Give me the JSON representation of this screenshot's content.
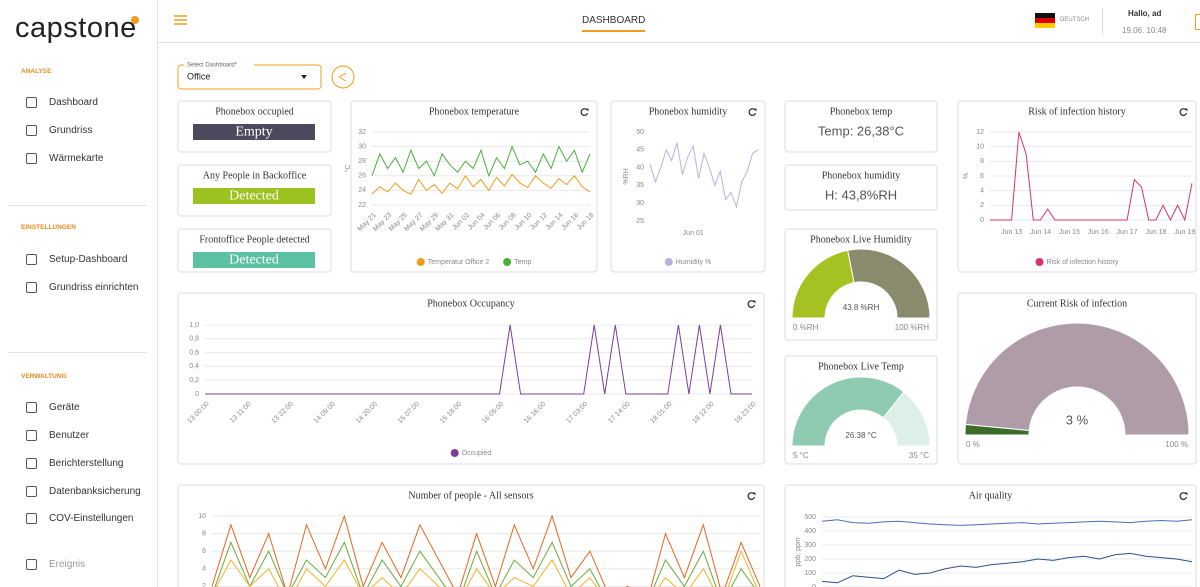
{
  "sidebar": {
    "logo": "capstone",
    "sections": [
      {
        "title": "ANALYSE",
        "items": [
          "Dashboard",
          "Grundriss",
          "Wärmekarte"
        ]
      },
      {
        "title": "EINSTELLUNGEN",
        "items": [
          "Setup-Dashboard",
          "Grundriss einrichten"
        ]
      },
      {
        "title": "VERWALTUNG",
        "items": [
          "Geräte",
          "Benutzer",
          "Berichterstellung",
          "Datenbanksicherung",
          "COV-Einstellungen",
          "Ereignis"
        ]
      }
    ]
  },
  "header": {
    "title": "DASHBOARD",
    "language": "DEUTSCH",
    "greeting": "Hallo, ad",
    "datetime": "19.06. 10:48"
  },
  "select": {
    "label": "Select Dashboard*",
    "value": "Office"
  },
  "status_cards": [
    {
      "title": "Phonebox occupied",
      "value": "Empty",
      "color": "#4b4a5c"
    },
    {
      "title": "Any People in Backoffice",
      "value": "Detected",
      "color": "#9cc21f"
    },
    {
      "title": "Frontoffice People detected",
      "value": "Detected",
      "color": "#5cc0a2"
    }
  ],
  "value_cards": [
    {
      "title": "Phonebox temp",
      "value": "Temp: 26,38°C"
    },
    {
      "title": "Phonebox humidity",
      "value": "H: 43,8%RH"
    }
  ],
  "charts": {
    "temperature": {
      "type": "line",
      "title": "Phonebox temperature",
      "ylabel": "°C",
      "grid": true,
      "ylim": [
        22,
        32
      ],
      "yticks": [
        22,
        24,
        26,
        28,
        30,
        32
      ],
      "categories": [
        "May 21",
        null,
        "May 23",
        null,
        "May 25",
        null,
        "May 27",
        null,
        "May 29",
        null,
        "May 31",
        null,
        "Jun 02",
        null,
        "Jun 04",
        null,
        "Jun 06",
        null,
        "Jun 08",
        null,
        "Jun 10",
        null,
        "Jun 12",
        null,
        "Jun 14",
        null,
        "Jun 16",
        null,
        "Jun 18"
      ],
      "series": [
        {
          "name": "Temperatur Office 2",
          "color": "#f39c1f",
          "values": [
            23.5,
            24.5,
            23.8,
            25,
            24,
            23.5,
            25.5,
            24,
            24.8,
            23.6,
            25,
            24.2,
            26,
            24.5,
            25.5,
            24,
            25.8,
            24.6,
            26.2,
            25,
            24.4,
            26,
            25,
            24.3,
            25.6,
            24.8,
            26,
            24.5,
            23.8
          ]
        },
        {
          "name": "Temp",
          "color": "#4caf3c",
          "values": [
            26,
            29,
            27,
            28.5,
            26.5,
            29.5,
            27,
            28,
            26,
            29,
            27.5,
            26.5,
            28,
            27,
            29.5,
            26,
            28.5,
            27,
            30,
            27.5,
            28,
            26.5,
            29,
            27,
            30,
            28,
            29.5,
            26.5,
            29
          ]
        }
      ]
    },
    "humidity": {
      "type": "line",
      "title": "Phonebox humidity",
      "ylabel": "%RH",
      "grid": false,
      "ylim": [
        25,
        50
      ],
      "yticks": [
        25,
        30,
        35,
        40,
        45,
        50
      ],
      "categories": [
        null,
        null,
        null,
        null,
        null,
        null,
        null,
        null,
        "Jun 01",
        null,
        null,
        null,
        null,
        null,
        null,
        null,
        null,
        null,
        null,
        null,
        null
      ],
      "series": [
        {
          "name": "Humidity %",
          "color": "#b8b2da",
          "values": [
            41,
            36,
            40,
            45,
            42,
            47,
            38,
            43,
            46,
            37,
            44,
            40,
            35,
            39,
            31,
            33,
            29,
            36,
            39,
            44,
            45
          ]
        }
      ]
    },
    "risk_history": {
      "type": "line",
      "title": "Risk of infection history",
      "ylabel": "%",
      "grid": true,
      "ylim": [
        0,
        12
      ],
      "yticks": [
        0,
        2,
        4,
        6,
        8,
        10,
        12
      ],
      "categories": [
        null,
        null,
        null,
        "Jun 13",
        null,
        null,
        null,
        "Jun 14",
        null,
        null,
        null,
        "Jun 15",
        null,
        null,
        null,
        "Jun 16",
        null,
        null,
        null,
        "Jun 17",
        null,
        null,
        null,
        "Jun 18",
        null,
        null,
        null,
        "Jun 19",
        null
      ],
      "series": [
        {
          "name": "Risk of infection history",
          "color": "#d6336c",
          "values": [
            0,
            0,
            0,
            0,
            12,
            9,
            0,
            0,
            1.5,
            0,
            0,
            0,
            0,
            0,
            0,
            0,
            0,
            0,
            0,
            0,
            5.5,
            4.5,
            0,
            0,
            2,
            0,
            2,
            0,
            5
          ]
        }
      ]
    },
    "occupancy": {
      "type": "line",
      "title": "Phonebox Occupancy",
      "grid": true,
      "ylim": [
        0,
        1
      ],
      "yticks": [
        {
          "value": 0,
          "label": "0"
        },
        {
          "value": 0.2,
          "label": "0,2"
        },
        {
          "value": 0.4,
          "label": "0,4"
        },
        {
          "value": 0.6,
          "label": "0,6"
        },
        {
          "value": 0.8,
          "label": "0,8"
        },
        {
          "value": 1,
          "label": "1,0"
        }
      ],
      "categories": [
        "13 00:00",
        null,
        null,
        null,
        "13 11:00",
        null,
        null,
        null,
        "13 22:00",
        null,
        null,
        null,
        "14 09:00",
        null,
        null,
        null,
        "14 20:00",
        null,
        null,
        null,
        "15 07:00",
        null,
        null,
        null,
        "15 18:00",
        null,
        null,
        null,
        "16 05:00",
        null,
        null,
        null,
        "16 16:00",
        null,
        null,
        null,
        "17 03:00",
        null,
        null,
        null,
        "17 14:00",
        null,
        null,
        null,
        "18 01:00",
        null,
        null,
        null,
        "18 12:00",
        null,
        null,
        null,
        "18 23:00"
      ],
      "series": [
        {
          "name": "Occupied",
          "color": "#7b3f9e",
          "values": [
            0,
            0,
            0,
            0,
            0,
            0,
            0,
            0,
            0,
            0,
            0,
            0,
            0,
            0,
            0,
            0,
            0,
            0,
            0,
            0,
            0,
            0,
            0,
            0,
            0,
            0,
            0,
            0,
            0,
            1,
            0,
            0,
            0,
            0,
            0,
            0,
            0,
            1,
            0,
            1,
            0,
            0,
            0,
            0,
            0,
            1,
            0,
            1,
            0,
            1,
            0,
            0,
            0
          ]
        }
      ]
    },
    "people": {
      "type": "line",
      "title": "Number of people - All sensors",
      "grid": true,
      "ylim": [
        0,
        10
      ],
      "yticks": [
        2,
        4,
        6,
        8,
        10
      ],
      "series": [
        {
          "color": "#e8651f",
          "values": [
            2,
            9,
            3,
            8,
            1,
            9,
            4,
            10,
            2,
            7,
            3,
            9,
            5,
            1,
            8,
            2,
            9,
            4,
            10,
            3,
            6,
            1,
            2,
            0,
            8,
            3,
            9,
            1,
            7,
            2
          ]
        },
        {
          "color": "#6aaa3a",
          "values": [
            1,
            7,
            2,
            6,
            1,
            5,
            3,
            7,
            1,
            5,
            2,
            6,
            3,
            0,
            6,
            1,
            5,
            3,
            7,
            2,
            4,
            0,
            1,
            0,
            5,
            2,
            6,
            0,
            4,
            1
          ]
        },
        {
          "color": "#f0b429",
          "values": [
            1,
            5,
            2,
            4,
            0,
            4,
            2,
            5,
            1,
            3,
            1,
            4,
            2,
            0,
            4,
            1,
            3,
            2,
            5,
            1,
            3,
            0,
            1,
            0,
            3,
            1,
            4,
            0,
            6,
            1
          ]
        }
      ]
    },
    "air": {
      "type": "line",
      "title": "Air quality",
      "ylabel": "ppb, ppm",
      "grid": true,
      "ylim": [
        0,
        500
      ],
      "yticks": [
        0,
        100,
        200,
        300,
        400,
        500
      ],
      "series": [
        {
          "color": "#4a6fb5",
          "values": [
            470,
            480,
            460,
            455,
            465,
            470,
            460,
            450,
            445,
            440,
            445,
            450,
            455,
            460,
            450,
            455,
            460,
            465,
            470,
            465,
            460,
            470,
            475,
            470,
            480
          ]
        },
        {
          "color": "#2f4f8f",
          "values": [
            40,
            30,
            80,
            70,
            60,
            120,
            90,
            100,
            130,
            150,
            140,
            160,
            170,
            180,
            200,
            190,
            210,
            220,
            200,
            230,
            240,
            220,
            210,
            200,
            180
          ]
        }
      ]
    },
    "live_humidity": {
      "type": "gauge",
      "title": "Phonebox Live Humidity",
      "value": 43.8,
      "value_label": "43.8 %RH",
      "range": [
        {
          "value": 0,
          "label": "0 %RH"
        },
        {
          "value": 100,
          "label": "100 %RH"
        }
      ],
      "colors": [
        "#a4c322",
        "#8a8b6c"
      ]
    },
    "live_temp": {
      "type": "gauge",
      "title": "Phonebox Live Temp",
      "value": 26.38,
      "value_label": "26.38 °C",
      "range": [
        {
          "value": 5,
          "label": "5 °C"
        },
        {
          "value": 35,
          "label": "35 °C"
        }
      ],
      "colors": [
        "#8fcbb1",
        "#ddefe9"
      ]
    },
    "current_risk": {
      "type": "gauge",
      "title": "Current Risk of infection",
      "value": 3,
      "value_label": "3 %",
      "range": [
        {
          "value": 0,
          "label": "0 %"
        },
        {
          "value": 100,
          "label": "100 %"
        }
      ],
      "colors": [
        "#3d6b2a",
        "#b09ca8"
      ]
    }
  }
}
